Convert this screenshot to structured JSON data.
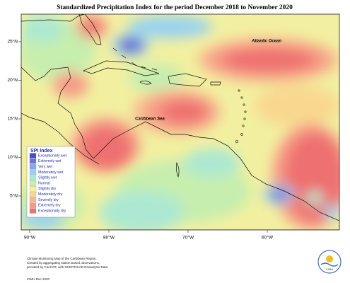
{
  "title": "Standardized Precipitation Index for the period December 2018 to November 2020",
  "labels": {
    "atlantic": "Atlantic Ocean",
    "caribbean": "Caribbean Sea"
  },
  "legend": {
    "title": "SPI Index",
    "items": [
      {
        "label": "Exceptionally wet",
        "color": "#5048c4"
      },
      {
        "label": "Extremely wet",
        "color": "#6c74d8"
      },
      {
        "label": "Very wet",
        "color": "#84a8ea"
      },
      {
        "label": "Moderately wet",
        "color": "#98d2f0"
      },
      {
        "label": "Slightly wet",
        "color": "#ace8d2"
      },
      {
        "label": "Normal",
        "color": "#c6eeae"
      },
      {
        "label": "Slightly dry",
        "color": "#f2f0a0"
      },
      {
        "label": "Moderately dry",
        "color": "#f8d88e"
      },
      {
        "label": "Severely dry",
        "color": "#f8b88e"
      },
      {
        "label": "Extremely dry",
        "color": "#f69a86"
      },
      {
        "label": "Exceptionally dry",
        "color": "#ee7070"
      }
    ]
  },
  "lat_ticks": [
    {
      "value": 25,
      "label": "25°N"
    },
    {
      "value": 20,
      "label": "20°N"
    },
    {
      "value": 15,
      "label": "15°N"
    },
    {
      "value": 10,
      "label": "10°N"
    },
    {
      "value": 5,
      "label": "5°N"
    }
  ],
  "lon_ticks": [
    {
      "value": -90,
      "label": "90°W"
    },
    {
      "value": -80,
      "label": "80°W"
    },
    {
      "value": -70,
      "label": "70°W"
    },
    {
      "value": -60,
      "label": "60°W"
    }
  ],
  "footnote": [
    "Climate Monitoring Map of the Caribbean Region.",
    "Created by aggregating station based observations,",
    "provided by CariCOF, with NCEP/NCAR Reanalysis Data."
  ],
  "credit": "CIMH Dec 2020",
  "logo": "CIMH"
}
